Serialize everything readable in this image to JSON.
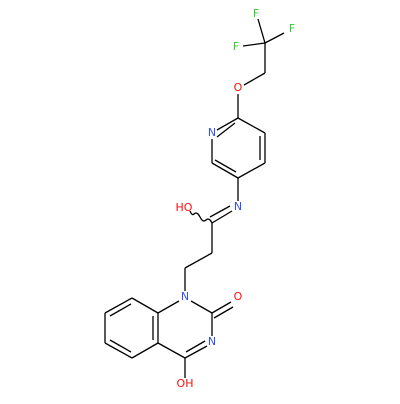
{
  "atoms": [
    {
      "label": "F",
      "color": "#33cc33"
    },
    {
      "label": "F",
      "color": "#33cc33"
    },
    {
      "label": "F",
      "color": "#33cc33"
    },
    {
      "label": "O",
      "color": "#ff0d0d"
    },
    {
      "label": "N",
      "color": "#3050f8"
    },
    {
      "label": "N",
      "color": "#3050f8"
    },
    {
      "label": "HO",
      "color": "#ff0d0d"
    },
    {
      "label": "N",
      "color": "#3050f8"
    },
    {
      "label": "O",
      "color": "#ff0d0d"
    },
    {
      "label": "N",
      "color": "#3050f8"
    },
    {
      "label": "OH",
      "color": "#ff0d0d"
    }
  ]
}
